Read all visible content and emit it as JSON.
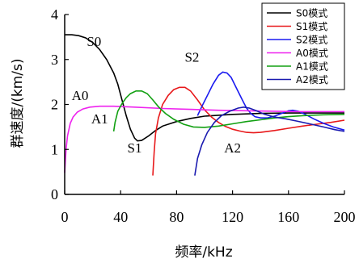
{
  "chart_data": {
    "type": "line",
    "title": "",
    "xlabel": "频率/kHz",
    "ylabel": "群速度/(km/s)",
    "xlim": [
      0,
      200
    ],
    "ylim": [
      0,
      4
    ],
    "xticks": [
      "0",
      "40",
      "80",
      "120",
      "160",
      "200"
    ],
    "yticks": [
      "0",
      "1",
      "2",
      "3",
      "4"
    ],
    "grid": false,
    "legend_position": "top-right",
    "series": [
      {
        "name": "S0模式",
        "color": "#000000",
        "points": [
          [
            0,
            3.55
          ],
          [
            5,
            3.55
          ],
          [
            10,
            3.53
          ],
          [
            15,
            3.48
          ],
          [
            20,
            3.38
          ],
          [
            25,
            3.22
          ],
          [
            30,
            3.0
          ],
          [
            35,
            2.7
          ],
          [
            38,
            2.45
          ],
          [
            41,
            2.1
          ],
          [
            44,
            1.75
          ],
          [
            47,
            1.45
          ],
          [
            50,
            1.25
          ],
          [
            52,
            1.19
          ],
          [
            55,
            1.2
          ],
          [
            60,
            1.3
          ],
          [
            65,
            1.42
          ],
          [
            70,
            1.52
          ],
          [
            80,
            1.62
          ],
          [
            90,
            1.69
          ],
          [
            100,
            1.74
          ],
          [
            120,
            1.78
          ],
          [
            140,
            1.8
          ],
          [
            160,
            1.81
          ],
          [
            180,
            1.81
          ],
          [
            200,
            1.81
          ]
        ]
      },
      {
        "name": "S1模式",
        "color": "#e8191b",
        "points": [
          [
            63,
            0.42
          ],
          [
            64,
            0.95
          ],
          [
            65,
            1.35
          ],
          [
            67,
            1.7
          ],
          [
            70,
            2.0
          ],
          [
            74,
            2.2
          ],
          [
            78,
            2.33
          ],
          [
            82,
            2.38
          ],
          [
            86,
            2.38
          ],
          [
            90,
            2.3
          ],
          [
            95,
            2.1
          ],
          [
            100,
            1.88
          ],
          [
            105,
            1.72
          ],
          [
            110,
            1.6
          ],
          [
            115,
            1.51
          ],
          [
            120,
            1.45
          ],
          [
            125,
            1.41
          ],
          [
            130,
            1.38
          ],
          [
            135,
            1.37
          ],
          [
            140,
            1.38
          ],
          [
            150,
            1.42
          ],
          [
            160,
            1.47
          ],
          [
            170,
            1.52
          ],
          [
            180,
            1.56
          ],
          [
            190,
            1.6
          ],
          [
            200,
            1.65
          ]
        ]
      },
      {
        "name": "S2模式",
        "color": "#1a1af0",
        "points": [
          [
            95,
            1.75
          ],
          [
            98,
            1.95
          ],
          [
            102,
            2.2
          ],
          [
            106,
            2.45
          ],
          [
            110,
            2.65
          ],
          [
            113,
            2.72
          ],
          [
            116,
            2.7
          ],
          [
            119,
            2.6
          ],
          [
            123,
            2.35
          ],
          [
            127,
            2.1
          ],
          [
            130,
            1.92
          ],
          [
            133,
            1.8
          ],
          [
            136,
            1.73
          ],
          [
            140,
            1.7
          ],
          [
            145,
            1.7
          ],
          [
            150,
            1.74
          ],
          [
            155,
            1.8
          ],
          [
            160,
            1.86
          ],
          [
            163,
            1.87
          ],
          [
            167,
            1.85
          ],
          [
            172,
            1.78
          ],
          [
            178,
            1.68
          ],
          [
            185,
            1.58
          ],
          [
            192,
            1.5
          ],
          [
            200,
            1.43
          ]
        ]
      },
      {
        "name": "A0模式",
        "color": "#ee22ee",
        "points": [
          [
            0,
            0.48
          ],
          [
            1,
            1.0
          ],
          [
            2,
            1.3
          ],
          [
            4,
            1.58
          ],
          [
            6,
            1.72
          ],
          [
            9,
            1.83
          ],
          [
            13,
            1.9
          ],
          [
            18,
            1.94
          ],
          [
            25,
            1.96
          ],
          [
            35,
            1.96
          ],
          [
            50,
            1.94
          ],
          [
            70,
            1.91
          ],
          [
            90,
            1.89
          ],
          [
            110,
            1.87
          ],
          [
            130,
            1.86
          ],
          [
            150,
            1.85
          ],
          [
            170,
            1.84
          ],
          [
            200,
            1.84
          ]
        ]
      },
      {
        "name": "A1模式",
        "color": "#12a012",
        "points": [
          [
            35,
            1.4
          ],
          [
            36,
            1.6
          ],
          [
            38,
            1.85
          ],
          [
            41,
            2.02
          ],
          [
            44,
            2.15
          ],
          [
            47,
            2.24
          ],
          [
            51,
            2.3
          ],
          [
            55,
            2.3
          ],
          [
            59,
            2.24
          ],
          [
            63,
            2.1
          ],
          [
            67,
            1.95
          ],
          [
            72,
            1.8
          ],
          [
            78,
            1.67
          ],
          [
            85,
            1.56
          ],
          [
            92,
            1.5
          ],
          [
            100,
            1.49
          ],
          [
            110,
            1.52
          ],
          [
            120,
            1.57
          ],
          [
            130,
            1.62
          ],
          [
            140,
            1.66
          ],
          [
            150,
            1.7
          ],
          [
            160,
            1.73
          ],
          [
            170,
            1.75
          ],
          [
            185,
            1.77
          ],
          [
            200,
            1.78
          ]
        ]
      },
      {
        "name": "A2模式",
        "color": "#1a1ab0",
        "points": [
          [
            93,
            0.42
          ],
          [
            95,
            0.8
          ],
          [
            98,
            1.1
          ],
          [
            102,
            1.38
          ],
          [
            107,
            1.6
          ],
          [
            112,
            1.75
          ],
          [
            118,
            1.85
          ],
          [
            124,
            1.92
          ],
          [
            128,
            1.94
          ],
          [
            132,
            1.92
          ],
          [
            137,
            1.86
          ],
          [
            143,
            1.78
          ],
          [
            150,
            1.72
          ],
          [
            158,
            1.68
          ],
          [
            166,
            1.63
          ],
          [
            175,
            1.57
          ],
          [
            185,
            1.5
          ],
          [
            193,
            1.44
          ],
          [
            200,
            1.4
          ]
        ]
      }
    ],
    "curve_labels": [
      {
        "text": "S0",
        "x": 21,
        "y": 3.3
      },
      {
        "text": "A0",
        "x": 11,
        "y": 2.1
      },
      {
        "text": "A1",
        "x": 25,
        "y": 1.58
      },
      {
        "text": "S1",
        "x": 50,
        "y": 0.93
      },
      {
        "text": "S2",
        "x": 91,
        "y": 2.95
      },
      {
        "text": "A2",
        "x": 120,
        "y": 0.93
      }
    ]
  }
}
